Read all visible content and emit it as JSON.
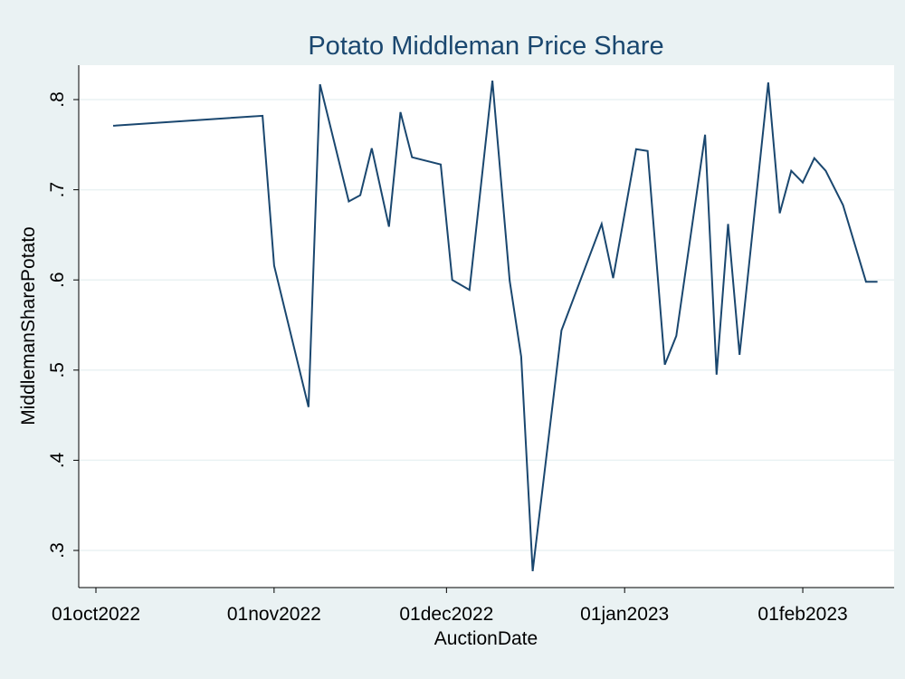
{
  "chart_data": {
    "type": "line",
    "title": "Potato Middleman Price Share",
    "xlabel": "AuctionDate",
    "ylabel": "MiddlemanSharePotato",
    "x_ticks": [
      "01oct2022",
      "01nov2022",
      "01dec2022",
      "01jan2023",
      "01feb2023"
    ],
    "y_ticks": [
      ".3",
      ".4",
      ".5",
      ".6",
      ".7",
      ".8"
    ],
    "ylim": [
      0.3,
      0.8
    ],
    "grid": true,
    "colors": {
      "background": "#eaf2f3",
      "plot_area": "#ffffff",
      "line": "#1a476f",
      "title": "#1a476f"
    },
    "series": [
      {
        "x": [
          "2022-10-04",
          "2022-10-30",
          "2022-11-01",
          "2022-11-07",
          "2022-11-09",
          "2022-11-14",
          "2022-11-16",
          "2022-11-18",
          "2022-11-21",
          "2022-11-23",
          "2022-11-25",
          "2022-11-30",
          "2022-12-02",
          "2022-12-05",
          "2022-12-09",
          "2022-12-12",
          "2022-12-14",
          "2022-12-16",
          "2022-12-21",
          "2022-12-28",
          "2022-12-30",
          "2023-01-03",
          "2023-01-05",
          "2023-01-08",
          "2023-01-10",
          "2023-01-15",
          "2023-01-17",
          "2023-01-19",
          "2023-01-21",
          "2023-01-26",
          "2023-01-28",
          "2023-01-30",
          "2023-02-01",
          "2023-02-03",
          "2023-02-05",
          "2023-02-08",
          "2023-02-12",
          "2023-02-14"
        ],
        "values": [
          0.771,
          0.782,
          0.616,
          0.459,
          0.817,
          0.687,
          0.694,
          0.746,
          0.659,
          0.786,
          0.736,
          0.728,
          0.6,
          0.589,
          0.821,
          0.599,
          0.515,
          0.277,
          0.544,
          0.662,
          0.602,
          0.745,
          0.743,
          0.506,
          0.538,
          0.761,
          0.495,
          0.662,
          0.517,
          0.819,
          0.674,
          0.721,
          0.708,
          0.735,
          0.721,
          0.683,
          0.598,
          0.598
        ]
      }
    ]
  }
}
